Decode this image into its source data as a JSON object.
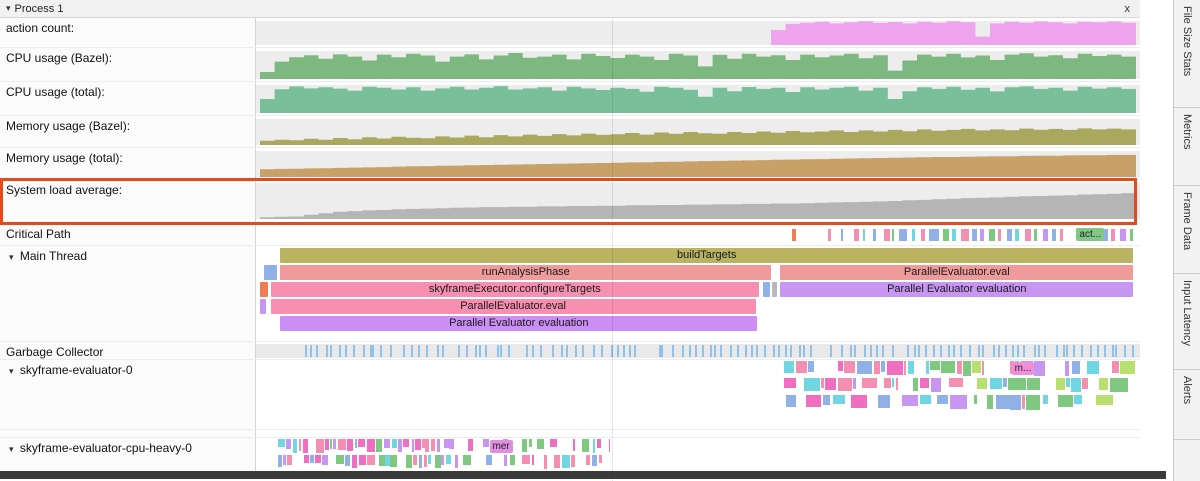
{
  "ui": {
    "expander": "▾"
  },
  "header": {
    "title": "Process 1",
    "close": "x"
  },
  "side_tabs": [
    {
      "label": "File Size Stats"
    },
    {
      "label": "Metrics"
    },
    {
      "label": "Frame Data"
    },
    {
      "label": "Input Latency"
    },
    {
      "label": "Alerts"
    }
  ],
  "highlight_color": "#e8491b",
  "counters": [
    {
      "id": "action-count",
      "label": "action count:",
      "color": "#eda4ec",
      "values": [
        0,
        0,
        0,
        0,
        0,
        0,
        0,
        0,
        0,
        0,
        0,
        0,
        0,
        0,
        0,
        0,
        0,
        0,
        0,
        0,
        0,
        0,
        0,
        0,
        0,
        0,
        0,
        0,
        0,
        0,
        0,
        0,
        0,
        0,
        0,
        0.62,
        0.88,
        0.93,
        0.97,
        0.9,
        0.95,
        0.99,
        0.92,
        0.96,
        0.9,
        0.97,
        0.93,
        0.99,
        0.95,
        0.35,
        0.9,
        0.97,
        0.93,
        0.98,
        0.95,
        0.9,
        0.97,
        0.94,
        0.98,
        0.93
      ]
    },
    {
      "id": "cpu-bazel",
      "label": "CPU usage (Bazel):",
      "color": "#7cb87f",
      "values": [
        0.25,
        0.62,
        0.78,
        0.85,
        0.72,
        0.88,
        0.8,
        0.66,
        0.87,
        0.78,
        0.9,
        0.84,
        0.62,
        0.8,
        0.88,
        0.7,
        0.84,
        0.93,
        0.76,
        0.8,
        0.87,
        0.7,
        0.9,
        0.82,
        0.75,
        0.87,
        0.8,
        0.68,
        0.9,
        0.84,
        0.45,
        0.86,
        0.72,
        0.9,
        0.8,
        0.85,
        0.68,
        0.87,
        0.78,
        0.84,
        0.9,
        0.74,
        0.85,
        0.3,
        0.66,
        0.87,
        0.8,
        0.9,
        0.77,
        0.84,
        0.68,
        0.87,
        0.92,
        0.8,
        0.85,
        0.74,
        0.9,
        0.82,
        0.87,
        0.8
      ]
    },
    {
      "id": "cpu-total",
      "label": "CPU usage (total):",
      "color": "#79c09a",
      "values": [
        0.5,
        0.85,
        0.95,
        0.88,
        0.92,
        0.87,
        0.8,
        0.94,
        0.9,
        0.84,
        0.92,
        0.8,
        0.88,
        0.94,
        0.84,
        0.9,
        0.96,
        0.84,
        0.88,
        0.92,
        0.8,
        0.94,
        0.88,
        0.82,
        0.9,
        0.86,
        0.76,
        0.94,
        0.9,
        0.83,
        0.58,
        0.9,
        0.78,
        0.93,
        0.86,
        0.9,
        0.75,
        0.92,
        0.84,
        0.9,
        0.94,
        0.8,
        0.9,
        0.5,
        0.78,
        0.92,
        0.86,
        0.94,
        0.83,
        0.9,
        0.77,
        0.92,
        0.95,
        0.86,
        0.9,
        0.8,
        0.94,
        0.87,
        0.92,
        0.86
      ]
    },
    {
      "id": "mem-bazel",
      "label": "Memory usage (Bazel):",
      "color": "#aaa85e",
      "values": [
        0.16,
        0.2,
        0.18,
        0.24,
        0.2,
        0.27,
        0.22,
        0.3,
        0.25,
        0.32,
        0.28,
        0.26,
        0.33,
        0.29,
        0.36,
        0.3,
        0.38,
        0.33,
        0.4,
        0.35,
        0.42,
        0.37,
        0.44,
        0.39,
        0.41,
        0.46,
        0.4,
        0.48,
        0.43,
        0.5,
        0.45,
        0.43,
        0.5,
        0.46,
        0.52,
        0.47,
        0.54,
        0.49,
        0.52,
        0.56,
        0.5,
        0.56,
        0.52,
        0.58,
        0.53,
        0.6,
        0.55,
        0.58,
        0.62,
        0.56,
        0.6,
        0.57,
        0.63,
        0.59,
        0.62,
        0.58,
        0.64,
        0.6,
        0.63,
        0.6
      ]
    },
    {
      "id": "mem-total",
      "label": "Memory usage (total):",
      "color": "#c7a168",
      "values": [
        0.3,
        0.31,
        0.32,
        0.33,
        0.34,
        0.35,
        0.36,
        0.37,
        0.38,
        0.4,
        0.41,
        0.42,
        0.43,
        0.44,
        0.45,
        0.46,
        0.47,
        0.48,
        0.49,
        0.5,
        0.51,
        0.52,
        0.53,
        0.54,
        0.55,
        0.56,
        0.57,
        0.58,
        0.59,
        0.6,
        0.61,
        0.62,
        0.63,
        0.64,
        0.65,
        0.66,
        0.67,
        0.68,
        0.69,
        0.7,
        0.71,
        0.72,
        0.73,
        0.74,
        0.75,
        0.76,
        0.77,
        0.77,
        0.78,
        0.79,
        0.8,
        0.8,
        0.81,
        0.82,
        0.82,
        0.83,
        0.84,
        0.84,
        0.85,
        0.85
      ]
    },
    {
      "id": "load-avg",
      "label": "System load average:",
      "color": "#b5b5b5",
      "values": [
        0.05,
        0.06,
        0.07,
        0.12,
        0.16,
        0.2,
        0.22,
        0.24,
        0.25,
        0.27,
        0.28,
        0.29,
        0.3,
        0.31,
        0.32,
        0.33,
        0.33,
        0.34,
        0.34,
        0.35,
        0.35,
        0.36,
        0.36,
        0.37,
        0.37,
        0.38,
        0.38,
        0.39,
        0.39,
        0.4,
        0.4,
        0.41,
        0.41,
        0.42,
        0.42,
        0.43,
        0.43,
        0.44,
        0.45,
        0.46,
        0.47,
        0.48,
        0.49,
        0.5,
        0.52,
        0.53,
        0.55,
        0.56,
        0.58,
        0.59,
        0.6,
        0.62,
        0.63,
        0.64,
        0.65,
        0.66,
        0.68,
        0.69,
        0.7,
        0.72
      ]
    }
  ],
  "critical_path": {
    "label": "Critical Path",
    "badge": {
      "label": "act...",
      "color": "#82c785",
      "x": 0.932
    },
    "ticks": [
      {
        "x": 0.607,
        "w": 4,
        "c": "#ee7d56"
      },
      {
        "x": 0.648,
        "w": 3,
        "c": "#f48fb1"
      },
      {
        "x": 0.663,
        "w": 2,
        "c": "#8fb1e8"
      },
      {
        "x": 0.678,
        "w": 5,
        "c": "#f48fb1"
      },
      {
        "x": 0.688,
        "w": 2,
        "c": "#6fd6e2"
      },
      {
        "x": 0.7,
        "w": 3,
        "c": "#8fb1e8"
      },
      {
        "x": 0.712,
        "w": 6,
        "c": "#f48fb1"
      },
      {
        "x": 0.722,
        "w": 2,
        "c": "#7ec97f"
      },
      {
        "x": 0.73,
        "w": 8,
        "c": "#8fb1e8"
      },
      {
        "x": 0.744,
        "w": 3,
        "c": "#6fd6e2"
      },
      {
        "x": 0.754,
        "w": 4,
        "c": "#f48fb1"
      },
      {
        "x": 0.764,
        "w": 10,
        "c": "#8fb1e8"
      },
      {
        "x": 0.78,
        "w": 6,
        "c": "#7ec97f"
      },
      {
        "x": 0.79,
        "w": 4,
        "c": "#6fd6e2"
      },
      {
        "x": 0.8,
        "w": 8,
        "c": "#f48fb1"
      },
      {
        "x": 0.813,
        "w": 5,
        "c": "#8fb1e8"
      },
      {
        "x": 0.822,
        "w": 4,
        "c": "#c795f2"
      },
      {
        "x": 0.832,
        "w": 6,
        "c": "#7ec97f"
      },
      {
        "x": 0.843,
        "w": 3,
        "c": "#f48fb1"
      },
      {
        "x": 0.853,
        "w": 5,
        "c": "#8fb1e8"
      },
      {
        "x": 0.862,
        "w": 4,
        "c": "#6fd6e2"
      },
      {
        "x": 0.873,
        "w": 6,
        "c": "#f48fb1"
      },
      {
        "x": 0.884,
        "w": 3,
        "c": "#7ec97f"
      },
      {
        "x": 0.894,
        "w": 5,
        "c": "#c795f2"
      },
      {
        "x": 0.904,
        "w": 4,
        "c": "#8fb1e8"
      },
      {
        "x": 0.913,
        "w": 3,
        "c": "#f48fb1"
      },
      {
        "x": 0.962,
        "w": 5,
        "c": "#8fb1e8"
      },
      {
        "x": 0.972,
        "w": 4,
        "c": "#f48fb1"
      },
      {
        "x": 0.982,
        "w": 6,
        "c": "#c795f2"
      },
      {
        "x": 0.993,
        "w": 3,
        "c": "#7ec97f"
      }
    ]
  },
  "main_thread": {
    "label": "Main Thread",
    "rows": [
      [
        {
          "s": 0.023,
          "e": 0.998,
          "c": "#b9b362",
          "label": "buildTargets"
        }
      ],
      [
        {
          "s": 0.004,
          "e": 0.02,
          "c": "#8fb1e8"
        },
        {
          "s": 0.023,
          "e": 0.585,
          "c": "#f09b9b",
          "label": "runAnalysisPhase"
        },
        {
          "s": 0.594,
          "e": 0.998,
          "c": "#f09b9b",
          "label": "ParallelEvaluator.eval"
        }
      ],
      [
        {
          "s": 0.0,
          "e": 0.01,
          "c": "#ee7d56"
        },
        {
          "s": 0.012,
          "e": 0.571,
          "c": "#f78fb0",
          "label": "skyframeExecutor.configureTargets"
        },
        {
          "s": 0.574,
          "e": 0.583,
          "c": "#8fb1e8"
        },
        {
          "s": 0.585,
          "e": 0.591,
          "c": "#b8b8b8"
        },
        {
          "s": 0.594,
          "e": 0.998,
          "c": "#c795f2",
          "label": "Parallel Evaluator evaluation"
        }
      ],
      [
        {
          "s": 0.0,
          "e": 0.008,
          "c": "#c795f2"
        },
        {
          "s": 0.012,
          "e": 0.567,
          "c": "#f78fb0",
          "label": "ParallelEvaluator.eval"
        }
      ],
      [
        {
          "s": 0.023,
          "e": 0.569,
          "c": "#cb8ef5",
          "label": "Parallel Evaluator evaluation"
        }
      ]
    ]
  },
  "gc": {
    "label": "Garbage Collector",
    "color": "#8fc2ea",
    "count": 120,
    "start": 0.03,
    "end": 0.999,
    "seed": 7
  },
  "evaluator0": {
    "label": "skyframe-evaluator-0",
    "badge": {
      "label": "m...",
      "color": "#f08fd8",
      "x": 0.858
    },
    "maxw": 16,
    "palette": [
      "#f48fb1",
      "#ef6ebf",
      "#7ec97f",
      "#6fd6e2",
      "#c795f2",
      "#8fb1e8",
      "#b8e06f"
    ],
    "rows": [
      {
        "seed": 11,
        "segments": [
          [
            0.598,
            0.633,
            0.2
          ],
          [
            0.66,
            0.827,
            0.25
          ],
          [
            0.856,
            0.896,
            0.3
          ],
          [
            0.919,
            0.999,
            0.25
          ]
        ]
      },
      {
        "seed": 22,
        "segments": [
          [
            0.598,
            0.999,
            0.35
          ]
        ]
      },
      {
        "seed": 33,
        "segments": [
          [
            0.6,
            0.99,
            0.65
          ]
        ]
      }
    ]
  },
  "cpu_heavy": {
    "label": "skyframe-evaluator-cpu-heavy-0",
    "badge": {
      "label": "mer",
      "color": "#e08fe0",
      "x": 0.262
    },
    "maxw": 6,
    "palette": [
      "#6fd6e2",
      "#ef6ebf",
      "#f48fb1",
      "#c795f2",
      "#7ec97f",
      "#8fb1e8"
    ],
    "rows": [
      {
        "seed": 44,
        "segments": [
          [
            0.02,
            0.205,
            0.12
          ],
          [
            0.21,
            0.4,
            0.65
          ]
        ]
      },
      {
        "seed": 55,
        "segments": [
          [
            0.02,
            0.195,
            0.15
          ],
          [
            0.2,
            0.39,
            0.6
          ]
        ]
      }
    ]
  }
}
